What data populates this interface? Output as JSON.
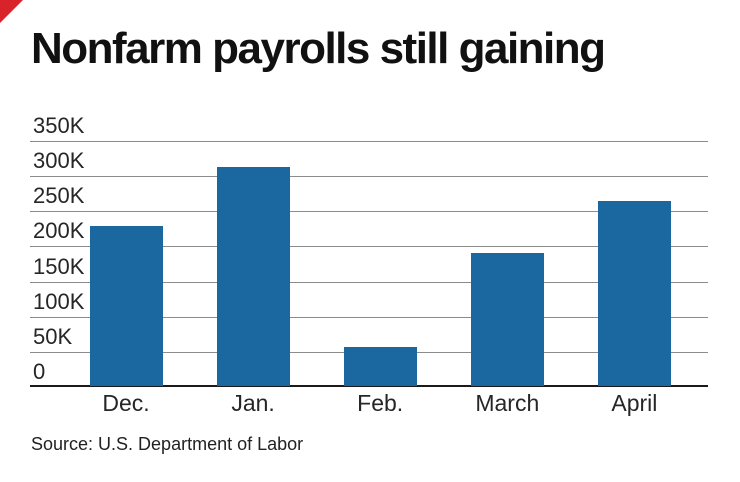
{
  "page": {
    "title": "Nonfarm payrolls still gaining",
    "source": "Source: U.S. Department of Labor",
    "brand_mark": {
      "icon": "red-corner-triangle-icon",
      "color": "#d8232a"
    }
  },
  "chart_data": {
    "type": "bar",
    "title": "Nonfarm payrolls still gaining",
    "categories": [
      "Dec.",
      "Jan.",
      "Feb.",
      "March",
      "April"
    ],
    "values": [
      227000,
      312000,
      56000,
      189000,
      263000
    ],
    "ylabel": "",
    "xlabel": "",
    "ylim": [
      0,
      350000
    ],
    "ytick_step": 50000,
    "ytick_labels": [
      "0",
      "50K",
      "100K",
      "150K",
      "200K",
      "250K",
      "300K",
      "350K"
    ],
    "grid": "horizontal",
    "legend": "none",
    "bar_color": "#1b68a1",
    "gridline_color": "#8c8c8c",
    "baseline_color": "#1a1a1a",
    "source": "Source: U.S. Department of Labor"
  }
}
